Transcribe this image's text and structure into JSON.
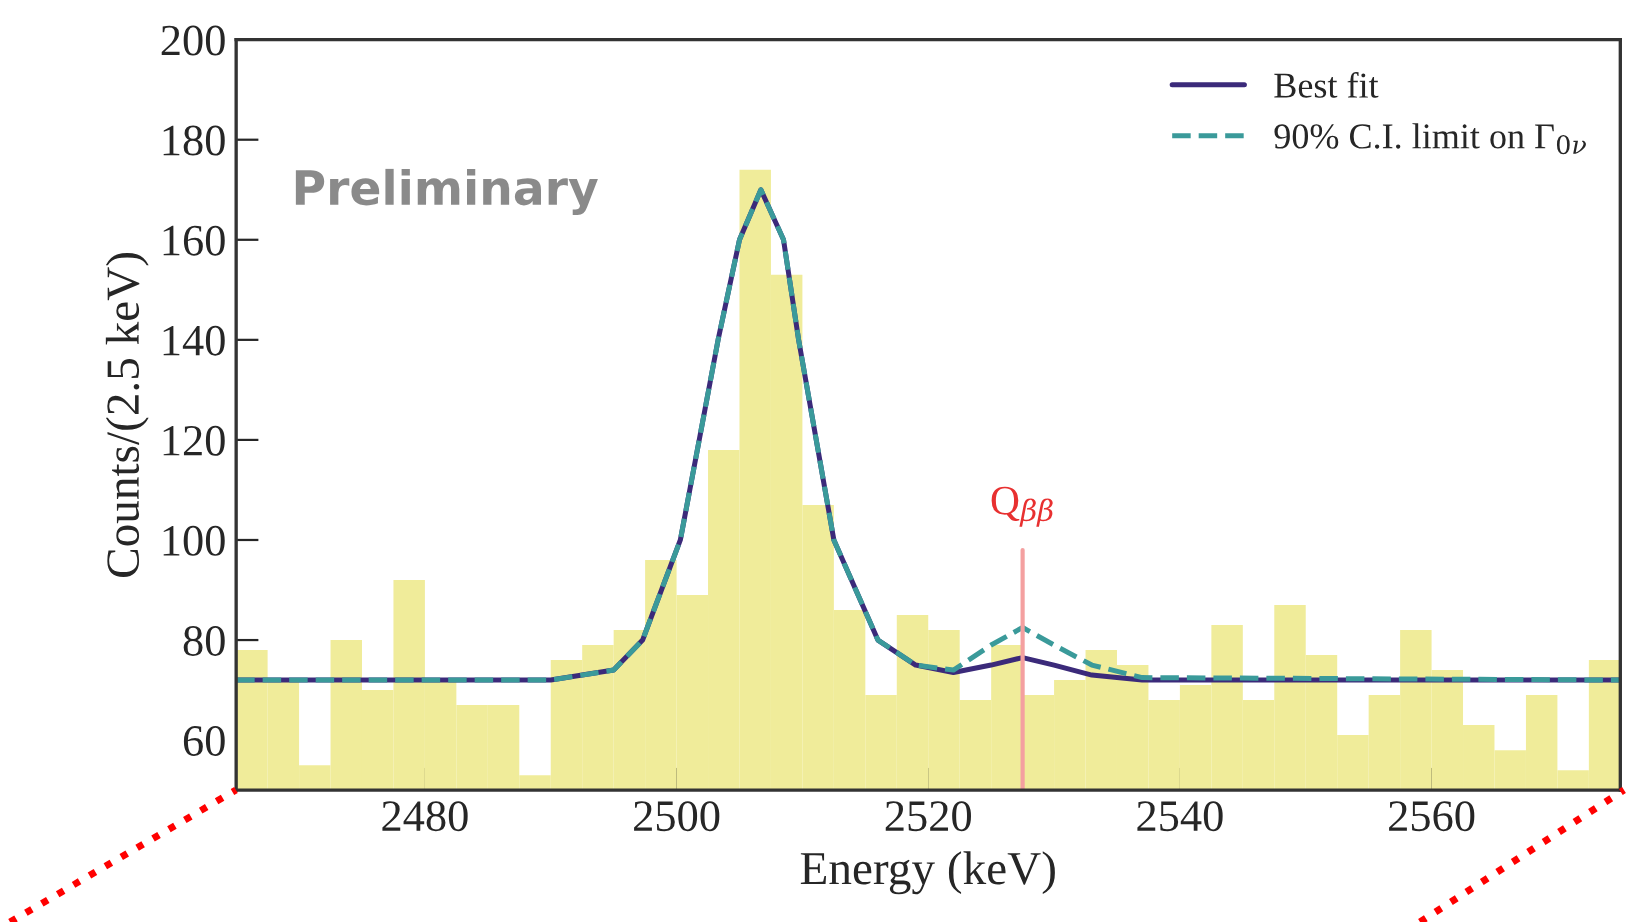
{
  "chart_data": {
    "type": "histogram",
    "xlabel": "Energy (keV)",
    "ylabel": "Counts/(2.5 keV)",
    "bins": [
      2465,
      2467.5,
      2470,
      2472.5,
      2475,
      2477.5,
      2480,
      2482.5,
      2485,
      2487.5,
      2490,
      2492.5,
      2495,
      2497.5,
      2500,
      2502.5,
      2505,
      2507.5,
      2510,
      2512.5,
      2515,
      2517.5,
      2520,
      2522.5,
      2525,
      2527.5,
      2530,
      2532.5,
      2535,
      2537.5,
      2540,
      2542.5,
      2545,
      2547.5,
      2550,
      2552.5,
      2555,
      2557.5,
      2560,
      2562.5,
      2565,
      2567.5,
      2570,
      2572.5,
      2575
    ],
    "values": [
      78,
      72,
      55,
      80,
      70,
      92,
      72,
      67,
      67,
      53,
      76,
      79,
      82,
      96,
      89,
      118,
      174,
      153,
      107,
      86,
      69,
      85,
      82,
      68,
      79,
      69,
      72,
      78,
      75,
      68,
      71,
      83,
      68,
      87,
      77,
      61,
      69,
      82,
      74,
      63,
      58,
      69,
      54,
      76
    ],
    "color": "#f0ec9a",
    "series": [
      {
        "name": "Best fit",
        "type": "line",
        "line_style": "solid",
        "color": "#3b2a7a",
        "x": [
          2465,
          2490,
          2495,
          2497.3,
          2500.3,
          2503.3,
          2505,
          2506.7,
          2508.5,
          2509.7,
          2512.5,
          2516,
          2519,
          2522,
          2525,
          2527.5,
          2530,
          2533,
          2537,
          2575
        ],
        "values": [
          72,
          72,
          74,
          80,
          100,
          140,
          160,
          170,
          160,
          140,
          100,
          80,
          75,
          73.5,
          75,
          76.5,
          75,
          73,
          72,
          72
        ]
      },
      {
        "name": "90% C.I. limit on Γ$_{0ν}$",
        "type": "line",
        "line_style": "dashed",
        "color": "#3a9a9a",
        "x": [
          2465,
          2490,
          2495,
          2497.3,
          2500.3,
          2503.3,
          2505,
          2506.7,
          2508.5,
          2509.7,
          2512.5,
          2516,
          2519,
          2522,
          2525,
          2527.5,
          2530,
          2533,
          2537,
          2575
        ],
        "values": [
          72,
          72,
          74,
          80,
          100,
          140,
          160,
          170,
          160,
          140,
          100,
          80,
          75,
          74,
          79,
          82.5,
          79,
          75,
          72.5,
          72
        ]
      }
    ],
    "ref_lines": [
      {
        "axis": "x",
        "value": 2527.5,
        "label": "Q$_{ββ}$",
        "color": "#f4a0a0"
      }
    ],
    "annotations": [
      "Preliminary"
    ],
    "xlim": [
      2465,
      2575
    ],
    "xticks": [
      2480,
      2500,
      2520,
      2540,
      2560
    ],
    "ylim": [
      50,
      200
    ],
    "yticks": [
      60,
      80,
      100,
      120,
      140,
      160,
      180,
      200
    ],
    "grid": false,
    "legend": "top right"
  }
}
